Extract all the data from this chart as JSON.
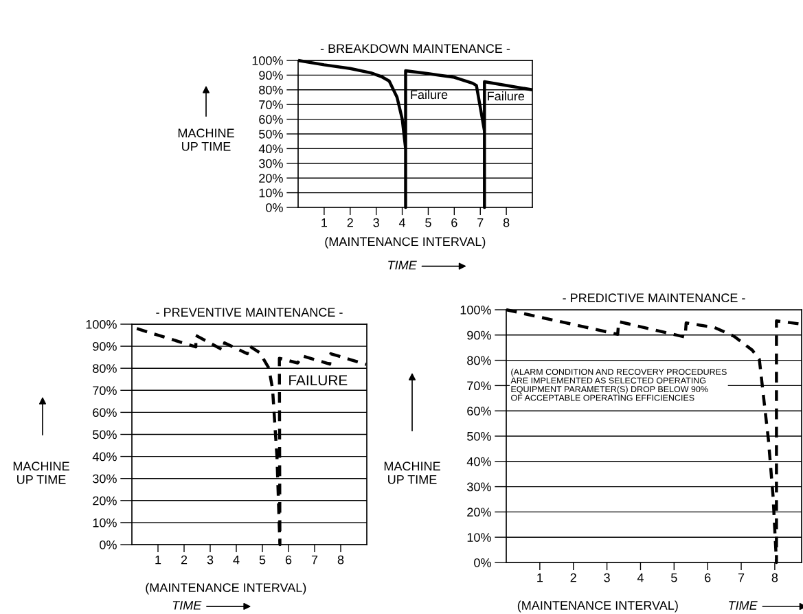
{
  "chart_data": [
    {
      "type": "line",
      "title": "- BREAKDOWN MAINTENANCE -",
      "ylabel": "MACHINE\nUP TIME",
      "xlabel": "(MAINTENANCE INTERVAL)",
      "xlim": [
        0,
        9
      ],
      "xticks": [
        1,
        2,
        3,
        4,
        5,
        6,
        7,
        8
      ],
      "ylim": [
        0,
        100
      ],
      "yticks": [
        {
          "value": 0,
          "label": "0%"
        },
        {
          "value": 10,
          "label": "10%"
        },
        {
          "value": 20,
          "label": "20%"
        },
        {
          "value": 30,
          "label": "30%"
        },
        {
          "value": 40,
          "label": "40%"
        },
        {
          "value": 50,
          "label": "50%"
        },
        {
          "value": 60,
          "label": "60%"
        },
        {
          "value": 70,
          "label": "70%"
        },
        {
          "value": 80,
          "label": "80%"
        },
        {
          "value": 90,
          "label": "90%"
        },
        {
          "value": 100,
          "label": "100%"
        }
      ],
      "grid": "y",
      "marker": "none",
      "line_style": "solid",
      "series": [
        {
          "color": "#000000",
          "x": [
            0,
            1,
            2,
            2.8,
            3.2,
            3.5,
            3.8,
            4.0,
            4.13,
            4.13,
            4.13,
            5,
            6,
            6.7,
            6.85,
            7.16,
            7.16,
            7.16,
            9
          ],
          "values": [
            100,
            97,
            94.5,
            91.5,
            89,
            86,
            75,
            60,
            40,
            0,
            93,
            91,
            88.5,
            84.5,
            83,
            52,
            0,
            85.5,
            80
          ]
        }
      ],
      "annotations": [
        {
          "text": "Failure",
          "x": 4.3,
          "y": 76
        },
        {
          "text": "Failure",
          "x": 7.25,
          "y": 75
        },
        "TIME"
      ]
    },
    {
      "type": "line",
      "title": "- PREVENTIVE MAINTENANCE -",
      "ylabel": "MACHINE\nUP TIME",
      "xlabel": "(MAINTENANCE INTERVAL)",
      "xlim": [
        0,
        9
      ],
      "xticks": [
        1,
        2,
        3,
        4,
        5,
        6,
        7,
        8
      ],
      "ylim": [
        0,
        100
      ],
      "yticks": [
        {
          "value": 0,
          "label": "0%"
        },
        {
          "value": 10,
          "label": "10%"
        },
        {
          "value": 20,
          "label": "20%"
        },
        {
          "value": 30,
          "label": "30%"
        },
        {
          "value": 40,
          "label": "40%"
        },
        {
          "value": 50,
          "label": "50%"
        },
        {
          "value": 60,
          "label": "60%"
        },
        {
          "value": 70,
          "label": "70%"
        },
        {
          "value": 80,
          "label": "80%"
        },
        {
          "value": 90,
          "label": "90%"
        },
        {
          "value": 100,
          "label": "100%"
        }
      ],
      "grid": "y",
      "marker": "none",
      "line_style": "dashed",
      "series": [
        {
          "color": "#000000",
          "x": [
            0.19,
            2.45,
            2.45,
            3.5,
            3.55,
            4.42,
            4.49,
            4.9,
            5.25,
            5.39,
            5.56,
            5.67,
            5.65,
            6.35,
            6.54,
            7.58,
            7.62,
            8.98
          ],
          "values": [
            98,
            89.7,
            94.9,
            88.2,
            91.5,
            86.6,
            90.2,
            87,
            80,
            70.5,
            39.3,
            0,
            84.5,
            82.4,
            85.6,
            81.9,
            86.6,
            81.7
          ]
        }
      ],
      "annotations": [
        "FAILURE",
        "TIME"
      ]
    },
    {
      "type": "line",
      "title": "- PREDICTIVE MAINTENANCE -",
      "ylabel": "MACHINE\nUP TIME",
      "xlabel": "(MAINTENANCE INTERVAL)",
      "xlim": [
        0,
        8.8
      ],
      "xticks": [
        1,
        2,
        3,
        4,
        5,
        6,
        7,
        8
      ],
      "ylim": [
        0,
        100
      ],
      "yticks": [
        {
          "value": 0,
          "label": "0%"
        },
        {
          "value": 10,
          "label": "10%"
        },
        {
          "value": 20,
          "label": "20%"
        },
        {
          "value": 30,
          "label": "30%"
        },
        {
          "value": 40,
          "label": "40%"
        },
        {
          "value": 50,
          "label": "50%"
        },
        {
          "value": 60,
          "label": "60%"
        },
        {
          "value": 70,
          "label": "70%"
        },
        {
          "value": 80,
          "label": "80%"
        },
        {
          "value": 90,
          "label": "90%"
        },
        {
          "value": 100,
          "label": "100%"
        }
      ],
      "grid": "y",
      "marker": "none",
      "line_style": "dashed",
      "series": [
        {
          "color": "#000000",
          "x": [
            0,
            3.32,
            3.35,
            5.33,
            5.36,
            6.2,
            6.79,
            7.33,
            7.54,
            7.67,
            7.81,
            7.95,
            8.05,
            8.05,
            8.8
          ],
          "values": [
            100,
            90.3,
            95.3,
            89.2,
            94.8,
            93,
            89.5,
            84,
            80.4,
            65,
            48.7,
            26,
            0,
            95.6,
            94.3
          ]
        }
      ],
      "annotations": [
        "(ALARM CONDITION AND RECOVERY PROCEDURES\nARE IMPLEMENTED AS SELECTED OPERATING\nEQUIPMENT PARAMETER(S) DROP BELOW 90%\nOF ACCEPTABLE OPERATING EFFICIENCIES",
        "TIME"
      ]
    }
  ]
}
